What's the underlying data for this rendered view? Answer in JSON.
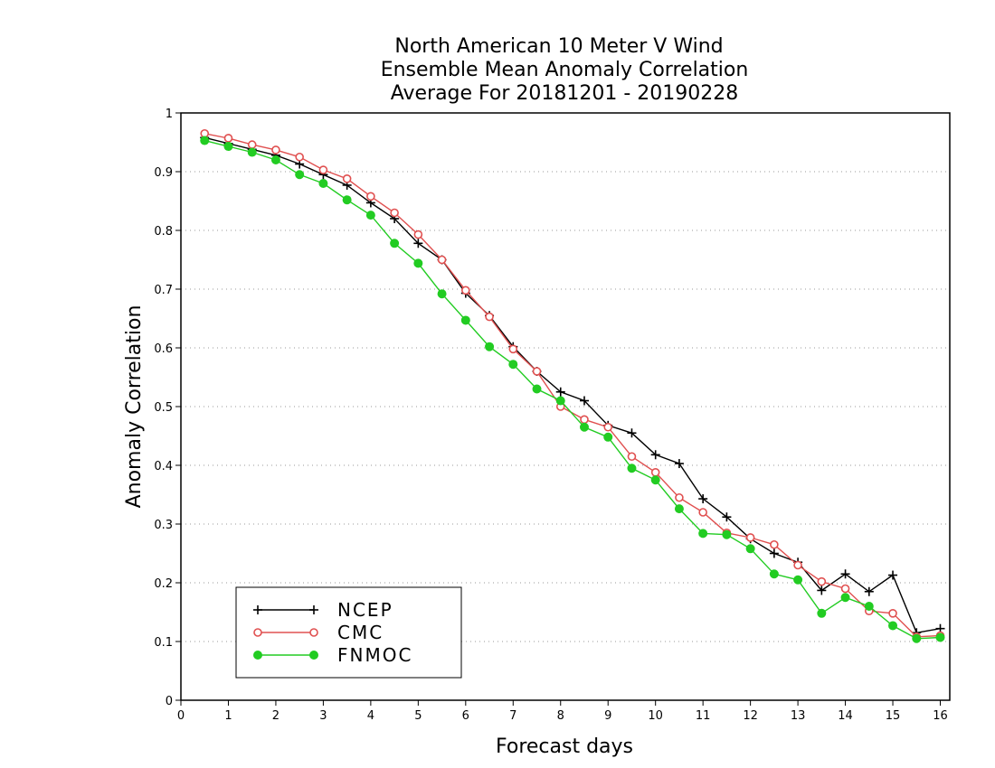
{
  "chart_data": {
    "type": "line",
    "title": [
      "North American 10 Meter V Wind",
      "Ensemble Mean Anomaly Correlation",
      "Average For 20181201 - 20190228"
    ],
    "xlabel": "Forecast days",
    "ylabel": "Anomaly Correlation",
    "xlim": [
      0,
      16.2
    ],
    "ylim": [
      0,
      1
    ],
    "xticks": [
      "0",
      "1",
      "2",
      "3",
      "4",
      "5",
      "6",
      "7",
      "8",
      "9",
      "10",
      "11",
      "12",
      "13",
      "14",
      "15",
      "16"
    ],
    "yticks": [
      "0",
      "0.1",
      "0.2",
      "0.3",
      "0.4",
      "0.5",
      "0.6",
      "0.7",
      "0.8",
      "0.9",
      "1"
    ],
    "grid": "horizontal dotted",
    "legend_position": "bottom-left",
    "x": [
      0.5,
      1,
      1.5,
      2,
      2.5,
      3,
      3.5,
      4,
      4.5,
      5,
      5.5,
      6,
      6.5,
      7,
      7.5,
      8,
      8.5,
      9,
      9.5,
      10,
      10.5,
      11,
      11.5,
      12,
      12.5,
      13,
      13.5,
      14,
      14.5,
      15,
      15.5,
      16
    ],
    "series": [
      {
        "name": "NCEP",
        "color": "#000000",
        "marker": "plus",
        "values": [
          0.958,
          0.948,
          0.938,
          0.928,
          0.913,
          0.895,
          0.877,
          0.847,
          0.82,
          0.778,
          0.75,
          0.693,
          0.655,
          0.602,
          0.56,
          0.525,
          0.51,
          0.468,
          0.455,
          0.418,
          0.403,
          0.343,
          0.312,
          0.275,
          0.25,
          0.235,
          0.187,
          0.215,
          0.185,
          0.213,
          0.115,
          0.122
        ]
      },
      {
        "name": "CMC",
        "color": "#e05050",
        "marker": "open-circle",
        "values": [
          0.965,
          0.957,
          0.946,
          0.937,
          0.925,
          0.903,
          0.888,
          0.858,
          0.83,
          0.793,
          0.75,
          0.698,
          0.653,
          0.598,
          0.56,
          0.5,
          0.478,
          0.465,
          0.415,
          0.388,
          0.345,
          0.32,
          0.285,
          0.277,
          0.265,
          0.23,
          0.202,
          0.19,
          0.152,
          0.148,
          0.108,
          0.11
        ]
      },
      {
        "name": "FNMOC",
        "color": "#22cc22",
        "marker": "filled-circle",
        "values": [
          0.953,
          0.943,
          0.933,
          0.92,
          0.895,
          0.88,
          0.852,
          0.826,
          0.778,
          0.744,
          0.692,
          0.647,
          0.602,
          0.572,
          0.53,
          0.51,
          0.465,
          0.448,
          0.395,
          0.375,
          0.326,
          0.284,
          0.282,
          0.258,
          0.215,
          0.205,
          0.148,
          0.175,
          0.16,
          0.127,
          0.105,
          0.107
        ]
      }
    ]
  }
}
